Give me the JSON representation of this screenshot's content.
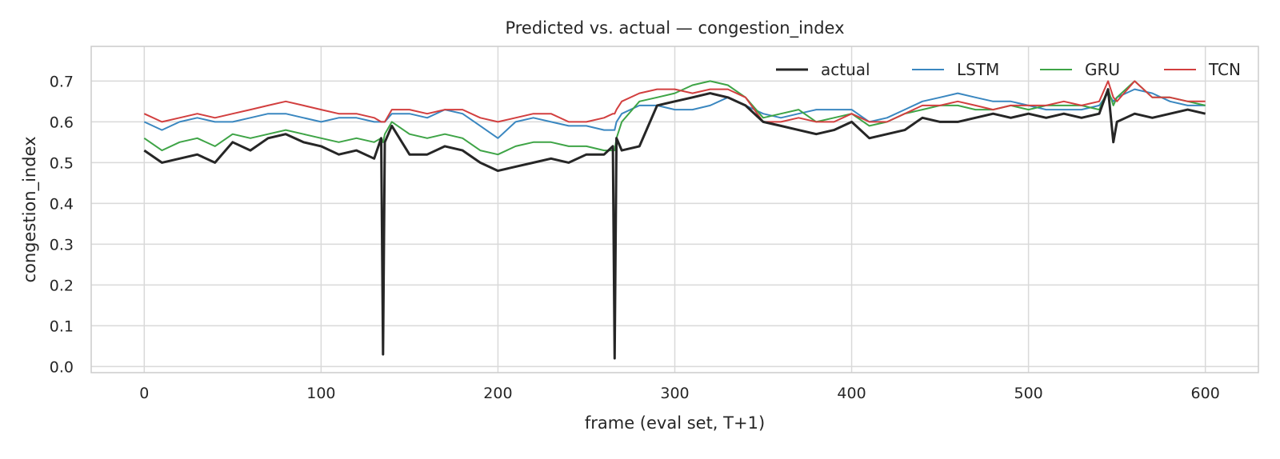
{
  "chart_data": {
    "type": "line",
    "title": "Predicted vs. actual — congestion_index",
    "xlabel": "frame (eval set, T+1)",
    "ylabel": "congestion_index",
    "xlim": [
      -30,
      630
    ],
    "ylim": [
      -0.015,
      0.785
    ],
    "xticks": [
      0,
      100,
      200,
      300,
      400,
      500,
      600
    ],
    "yticks": [
      0.0,
      0.1,
      0.2,
      0.3,
      0.4,
      0.5,
      0.6,
      0.7
    ],
    "grid": true,
    "legend": {
      "placement": "top-right",
      "columns": 4
    },
    "x": [
      0,
      10,
      20,
      30,
      40,
      50,
      60,
      70,
      80,
      90,
      100,
      110,
      120,
      130,
      134,
      135,
      136,
      140,
      150,
      160,
      170,
      180,
      190,
      200,
      210,
      220,
      230,
      240,
      250,
      260,
      265,
      266,
      267,
      270,
      280,
      290,
      300,
      310,
      320,
      330,
      340,
      350,
      360,
      370,
      380,
      390,
      400,
      410,
      420,
      430,
      440,
      450,
      460,
      470,
      480,
      490,
      500,
      510,
      520,
      530,
      540,
      545,
      548,
      550,
      560,
      570,
      580,
      590,
      600
    ],
    "series": [
      {
        "name": "actual",
        "color": "#262626",
        "values": [
          0.53,
          0.5,
          0.51,
          0.52,
          0.5,
          0.55,
          0.53,
          0.56,
          0.57,
          0.55,
          0.54,
          0.52,
          0.53,
          0.51,
          0.56,
          0.03,
          0.55,
          0.59,
          0.52,
          0.52,
          0.54,
          0.53,
          0.5,
          0.48,
          0.49,
          0.5,
          0.51,
          0.5,
          0.52,
          0.52,
          0.54,
          0.02,
          0.56,
          0.53,
          0.54,
          0.64,
          0.65,
          0.66,
          0.67,
          0.66,
          0.64,
          0.6,
          0.59,
          0.58,
          0.57,
          0.58,
          0.6,
          0.56,
          0.57,
          0.58,
          0.61,
          0.6,
          0.6,
          0.61,
          0.62,
          0.61,
          0.62,
          0.61,
          0.62,
          0.61,
          0.62,
          0.68,
          0.55,
          0.6,
          0.62,
          0.61,
          0.62,
          0.63,
          0.62
        ]
      },
      {
        "name": "LSTM",
        "color": "#3a87c0",
        "values": [
          0.6,
          0.58,
          0.6,
          0.61,
          0.6,
          0.6,
          0.61,
          0.62,
          0.62,
          0.61,
          0.6,
          0.61,
          0.61,
          0.6,
          0.6,
          0.6,
          0.6,
          0.62,
          0.62,
          0.61,
          0.63,
          0.62,
          0.59,
          0.56,
          0.6,
          0.61,
          0.6,
          0.59,
          0.59,
          0.58,
          0.58,
          0.58,
          0.6,
          0.62,
          0.64,
          0.64,
          0.63,
          0.63,
          0.64,
          0.66,
          0.64,
          0.62,
          0.61,
          0.62,
          0.63,
          0.63,
          0.63,
          0.6,
          0.61,
          0.63,
          0.65,
          0.66,
          0.67,
          0.66,
          0.65,
          0.65,
          0.64,
          0.63,
          0.63,
          0.63,
          0.64,
          0.67,
          0.65,
          0.66,
          0.68,
          0.67,
          0.65,
          0.64,
          0.64
        ]
      },
      {
        "name": "GRU",
        "color": "#3ea446",
        "values": [
          0.56,
          0.53,
          0.55,
          0.56,
          0.54,
          0.57,
          0.56,
          0.57,
          0.58,
          0.57,
          0.56,
          0.55,
          0.56,
          0.55,
          0.56,
          0.55,
          0.57,
          0.6,
          0.57,
          0.56,
          0.57,
          0.56,
          0.53,
          0.52,
          0.54,
          0.55,
          0.55,
          0.54,
          0.54,
          0.53,
          0.53,
          0.53,
          0.56,
          0.6,
          0.65,
          0.66,
          0.67,
          0.69,
          0.7,
          0.69,
          0.66,
          0.61,
          0.62,
          0.63,
          0.6,
          0.61,
          0.62,
          0.59,
          0.6,
          0.62,
          0.63,
          0.64,
          0.64,
          0.63,
          0.63,
          0.64,
          0.63,
          0.64,
          0.64,
          0.64,
          0.63,
          0.68,
          0.64,
          0.66,
          0.7,
          0.66,
          0.66,
          0.65,
          0.64
        ]
      },
      {
        "name": "TCN",
        "color": "#d23f3f",
        "values": [
          0.62,
          0.6,
          0.61,
          0.62,
          0.61,
          0.62,
          0.63,
          0.64,
          0.65,
          0.64,
          0.63,
          0.62,
          0.62,
          0.61,
          0.6,
          0.6,
          0.6,
          0.63,
          0.63,
          0.62,
          0.63,
          0.63,
          0.61,
          0.6,
          0.61,
          0.62,
          0.62,
          0.6,
          0.6,
          0.61,
          0.62,
          0.62,
          0.63,
          0.65,
          0.67,
          0.68,
          0.68,
          0.67,
          0.68,
          0.68,
          0.66,
          0.6,
          0.6,
          0.61,
          0.6,
          0.6,
          0.62,
          0.6,
          0.6,
          0.62,
          0.64,
          0.64,
          0.65,
          0.64,
          0.63,
          0.64,
          0.64,
          0.64,
          0.65,
          0.64,
          0.65,
          0.7,
          0.66,
          0.65,
          0.7,
          0.66,
          0.66,
          0.65,
          0.65
        ]
      }
    ]
  }
}
